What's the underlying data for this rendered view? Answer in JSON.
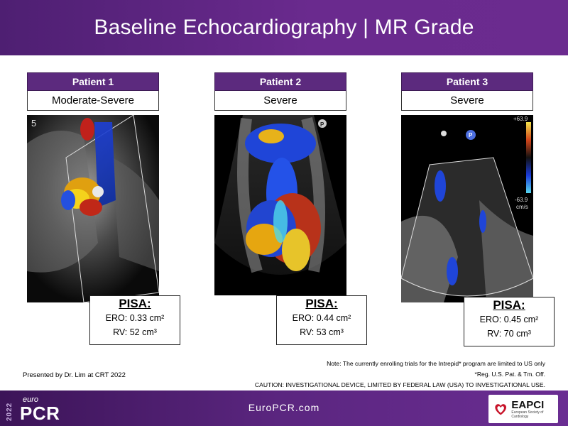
{
  "title": "Baseline Echocardiography | MR Grade",
  "patients": [
    {
      "label": "Patient 1",
      "grade": "Moderate-Severe",
      "pisa": {
        "title": "PISA:",
        "ero": "ERO: 0.33 cm²",
        "rv": "RV: 52 cm³"
      }
    },
    {
      "label": "Patient 2",
      "grade": "Severe",
      "pisa": {
        "title": "PISA:",
        "ero": "ERO: 0.44 cm²",
        "rv": "RV: 53 cm³"
      }
    },
    {
      "label": "Patient 3",
      "grade": "Severe",
      "pisa": {
        "title": "PISA:",
        "ero": "ERO: 0.45 cm²",
        "rv": "RV: 70 cm³"
      }
    }
  ],
  "echo_overlays": {
    "p1_marker": "5",
    "p2_marker": "P",
    "p3_marker": "P",
    "p3_scale_top": "+63.9",
    "p3_scale_bottom": "-63.9",
    "p3_scale_unit": "cm/s"
  },
  "presented_by": "Presented by Dr. Lim at CRT 2022",
  "notes": {
    "line1": "Note: The currently enrolling trials for the Intrepid* program are limited to US only",
    "line2": "*Reg. U.S. Pat. & Tm. Off.",
    "line3": "CAUTION: INVESTIGATIONAL DEVICE, LIMITED BY FEDERAL LAW (USA) TO INVESTIGATIONAL USE."
  },
  "footer": {
    "year": "2022",
    "brand_top": "euro",
    "brand_main": "PCR",
    "website": "EuroPCR.com",
    "partner": "EAPCI",
    "partner_sub": "European Society of Cardiology"
  },
  "colors": {
    "header": "#5a2680",
    "patient_head": "#5c2a7e",
    "footer": "#4f1d72"
  }
}
